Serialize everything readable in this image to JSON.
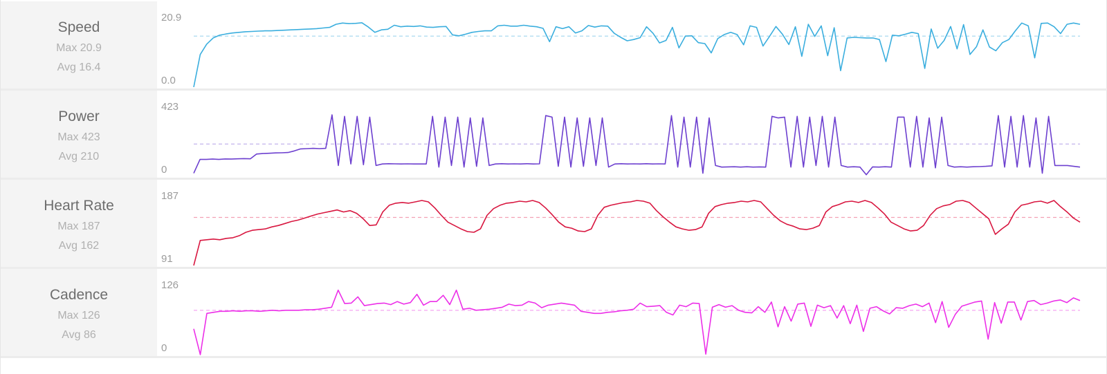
{
  "charts": [
    {
      "key": "speed",
      "name": "Speed",
      "max_label": "Max 20.9",
      "avg_label": "Avg 16.4",
      "top_tick": "20.9",
      "bottom_tick": "0.0",
      "color": "#3aaede",
      "avg_color": "#a9d9ef"
    },
    {
      "key": "power",
      "name": "Power",
      "max_label": "Max 423",
      "avg_label": "Avg 210",
      "top_tick": "423",
      "bottom_tick": "0",
      "color": "#6c3fcf",
      "avg_color": "#bcaaea"
    },
    {
      "key": "heart_rate",
      "name": "Heart Rate",
      "max_label": "Max 187",
      "avg_label": "Avg 162",
      "top_tick": "187",
      "bottom_tick": "91",
      "color": "#d8163f",
      "avg_color": "#f2a0b4"
    },
    {
      "key": "cadence",
      "name": "Cadence",
      "max_label": "Max 126",
      "avg_label": "Avg 86",
      "top_tick": "126",
      "bottom_tick": "0",
      "color": "#ec2fe8",
      "avg_color": "#f4a6f2"
    }
  ],
  "chart_data": [
    {
      "type": "line",
      "title": "Speed",
      "ylim": [
        0,
        20.9
      ],
      "yticks": [
        "0.0",
        "20.9"
      ],
      "avg": 16.4,
      "max": 20.9,
      "grid": false,
      "color": "#3aaede",
      "series": [
        {
          "values": [
            0,
            10.5,
            13.8,
            15.8,
            16.7,
            17.1,
            17.4,
            17.6,
            17.8,
            17.9,
            18.0,
            18.1,
            18.1,
            18.2,
            18.3,
            18.4,
            18.5,
            18.6,
            18.7,
            18.8,
            19.0,
            19.2,
            20.2,
            20.6,
            20.4,
            20.5,
            20.7,
            19.3,
            17.6,
            18.4,
            18.6,
            19.9,
            19.4,
            19.6,
            19.5,
            19.7,
            19.3,
            19.2,
            19.4,
            19.5,
            16.8,
            16.5,
            17.0,
            17.6,
            17.9,
            18.1,
            18.1,
            19.7,
            19.9,
            19.6,
            19.6,
            19.9,
            19.6,
            19.4,
            18.9,
            14.6,
            19.4,
            18.8,
            19.4,
            17.4,
            18.1,
            19.8,
            19.3,
            19.7,
            19.6,
            17.3,
            16.0,
            14.9,
            15.3,
            15.9,
            19.4,
            17.3,
            14.2,
            15.0,
            19.2,
            12.6,
            16.4,
            16.5,
            14.3,
            14.0,
            11.0,
            15.6,
            16.9,
            17.6,
            16.9,
            13.6,
            19.7,
            19.2,
            13.2,
            16.3,
            19.5,
            17.0,
            13.7,
            19.4,
            9.9,
            20.2,
            16.3,
            19.7,
            10.1,
            19.1,
            5.3,
            15.8,
            16.0,
            15.9,
            15.8,
            15.8,
            15.3,
            8.2,
            16.7,
            16.5,
            17.0,
            17.6,
            17.2,
            6.0,
            18.7,
            12.5,
            15.0,
            19.5,
            12.3,
            20.1,
            10.5,
            13.0,
            18.4,
            12.9,
            11.7,
            14.3,
            15.3,
            18.1,
            20.6,
            19.7,
            9.4,
            20.5,
            20.6,
            19.4,
            17.2,
            20.2,
            20.6,
            20.2
          ]
        }
      ]
    },
    {
      "type": "line",
      "title": "Power",
      "ylim": [
        0,
        423
      ],
      "yticks": [
        "0",
        "423"
      ],
      "avg": 210,
      "max": 423,
      "grid": false,
      "color": "#6c3fcf",
      "series": [
        {
          "values": [
            20,
            110,
            110,
            112,
            110,
            113,
            112,
            114,
            115,
            114,
            145,
            148,
            150,
            152,
            153,
            155,
            165,
            178,
            180,
            182,
            180,
            182,
            400,
            70,
            390,
            80,
            390,
            75,
            385,
            70,
            80,
            82,
            81,
            80,
            81,
            80,
            80,
            80,
            390,
            60,
            385,
            70,
            385,
            60,
            380,
            65,
            380,
            70,
            80,
            82,
            80,
            81,
            80,
            82,
            80,
            81,
            395,
            385,
            65,
            385,
            60,
            380,
            65,
            380,
            70,
            380,
            60,
            80,
            82,
            80,
            81,
            80,
            82,
            80,
            81,
            80,
            395,
            60,
            385,
            60,
            385,
            20,
            380,
            70,
            60,
            61,
            62,
            60,
            62,
            60,
            61,
            60,
            390,
            380,
            385,
            60,
            390,
            60,
            385,
            70,
            390,
            60,
            385,
            70,
            60,
            62,
            60,
            10,
            61,
            60,
            62,
            60,
            385,
            385,
            60,
            390,
            60,
            380,
            55,
            385,
            70,
            60,
            62,
            60,
            62,
            63,
            65,
            68,
            395,
            60,
            390,
            60,
            395,
            60,
            380,
            20,
            390,
            70,
            70,
            70,
            65,
            60
          ]
        }
      ]
    },
    {
      "type": "line",
      "title": "Heart Rate",
      "ylim": [
        91,
        187
      ],
      "yticks": [
        "91",
        "187"
      ],
      "avg": 162,
      "max": 187,
      "grid": false,
      "color": "#d8163f",
      "series": [
        {
          "values": [
            91,
            128,
            129,
            130,
            129,
            131,
            132,
            135,
            140,
            143,
            144,
            145,
            148,
            150,
            153,
            156,
            158,
            161,
            164,
            167,
            169,
            171,
            173,
            170,
            172,
            168,
            160,
            150,
            151,
            170,
            180,
            183,
            184,
            183,
            185,
            187,
            185,
            176,
            165,
            155,
            150,
            145,
            141,
            140,
            145,
            165,
            175,
            180,
            183,
            184,
            186,
            185,
            187,
            184,
            176,
            166,
            155,
            148,
            146,
            142,
            141,
            145,
            165,
            177,
            180,
            182,
            184,
            185,
            187,
            186,
            183,
            172,
            163,
            155,
            148,
            145,
            143,
            144,
            148,
            168,
            178,
            181,
            183,
            184,
            186,
            185,
            187,
            185,
            175,
            165,
            157,
            152,
            149,
            145,
            144,
            146,
            150,
            170,
            178,
            181,
            185,
            186,
            184,
            187,
            184,
            176,
            167,
            155,
            150,
            145,
            142,
            143,
            150,
            165,
            175,
            179,
            181,
            186,
            187,
            184,
            176,
            168,
            160,
            137,
            145,
            152,
            170,
            180,
            182,
            185,
            186,
            183,
            187,
            178,
            170,
            161,
            155
          ]
        }
      ]
    },
    {
      "type": "line",
      "title": "Cadence",
      "ylim": [
        0,
        126
      ],
      "yticks": [
        "0",
        "126"
      ],
      "avg": 86,
      "max": 126,
      "grid": false,
      "color": "#ec2fe8",
      "series": [
        {
          "values": [
            50,
            0,
            80,
            82,
            84,
            84,
            85,
            84,
            85,
            85,
            84,
            85,
            86,
            85,
            86,
            86,
            86,
            87,
            87,
            88,
            90,
            92,
            125,
            99,
            100,
            112,
            95,
            97,
            99,
            100,
            97,
            103,
            98,
            101,
            117,
            96,
            103,
            103,
            115,
            97,
            125,
            88,
            90,
            86,
            87,
            88,
            90,
            92,
            98,
            95,
            96,
            103,
            100,
            91,
            96,
            98,
            100,
            98,
            96,
            84,
            82,
            80,
            80,
            82,
            83,
            85,
            86,
            88,
            100,
            93,
            94,
            95,
            82,
            77,
            96,
            93,
            100,
            99,
            1,
            92,
            97,
            92,
            95,
            86,
            82,
            81,
            93,
            82,
            102,
            54,
            93,
            65,
            98,
            100,
            55,
            96,
            91,
            95,
            71,
            95,
            60,
            96,
            45,
            90,
            93,
            85,
            79,
            91,
            90,
            95,
            98,
            93,
            100,
            62,
            103,
            53,
            78,
            94,
            98,
            102,
            104,
            30,
            101,
            61,
            102,
            102,
            67,
            103,
            105,
            97,
            100,
            104,
            106,
            101,
            110,
            105
          ]
        }
      ]
    }
  ]
}
